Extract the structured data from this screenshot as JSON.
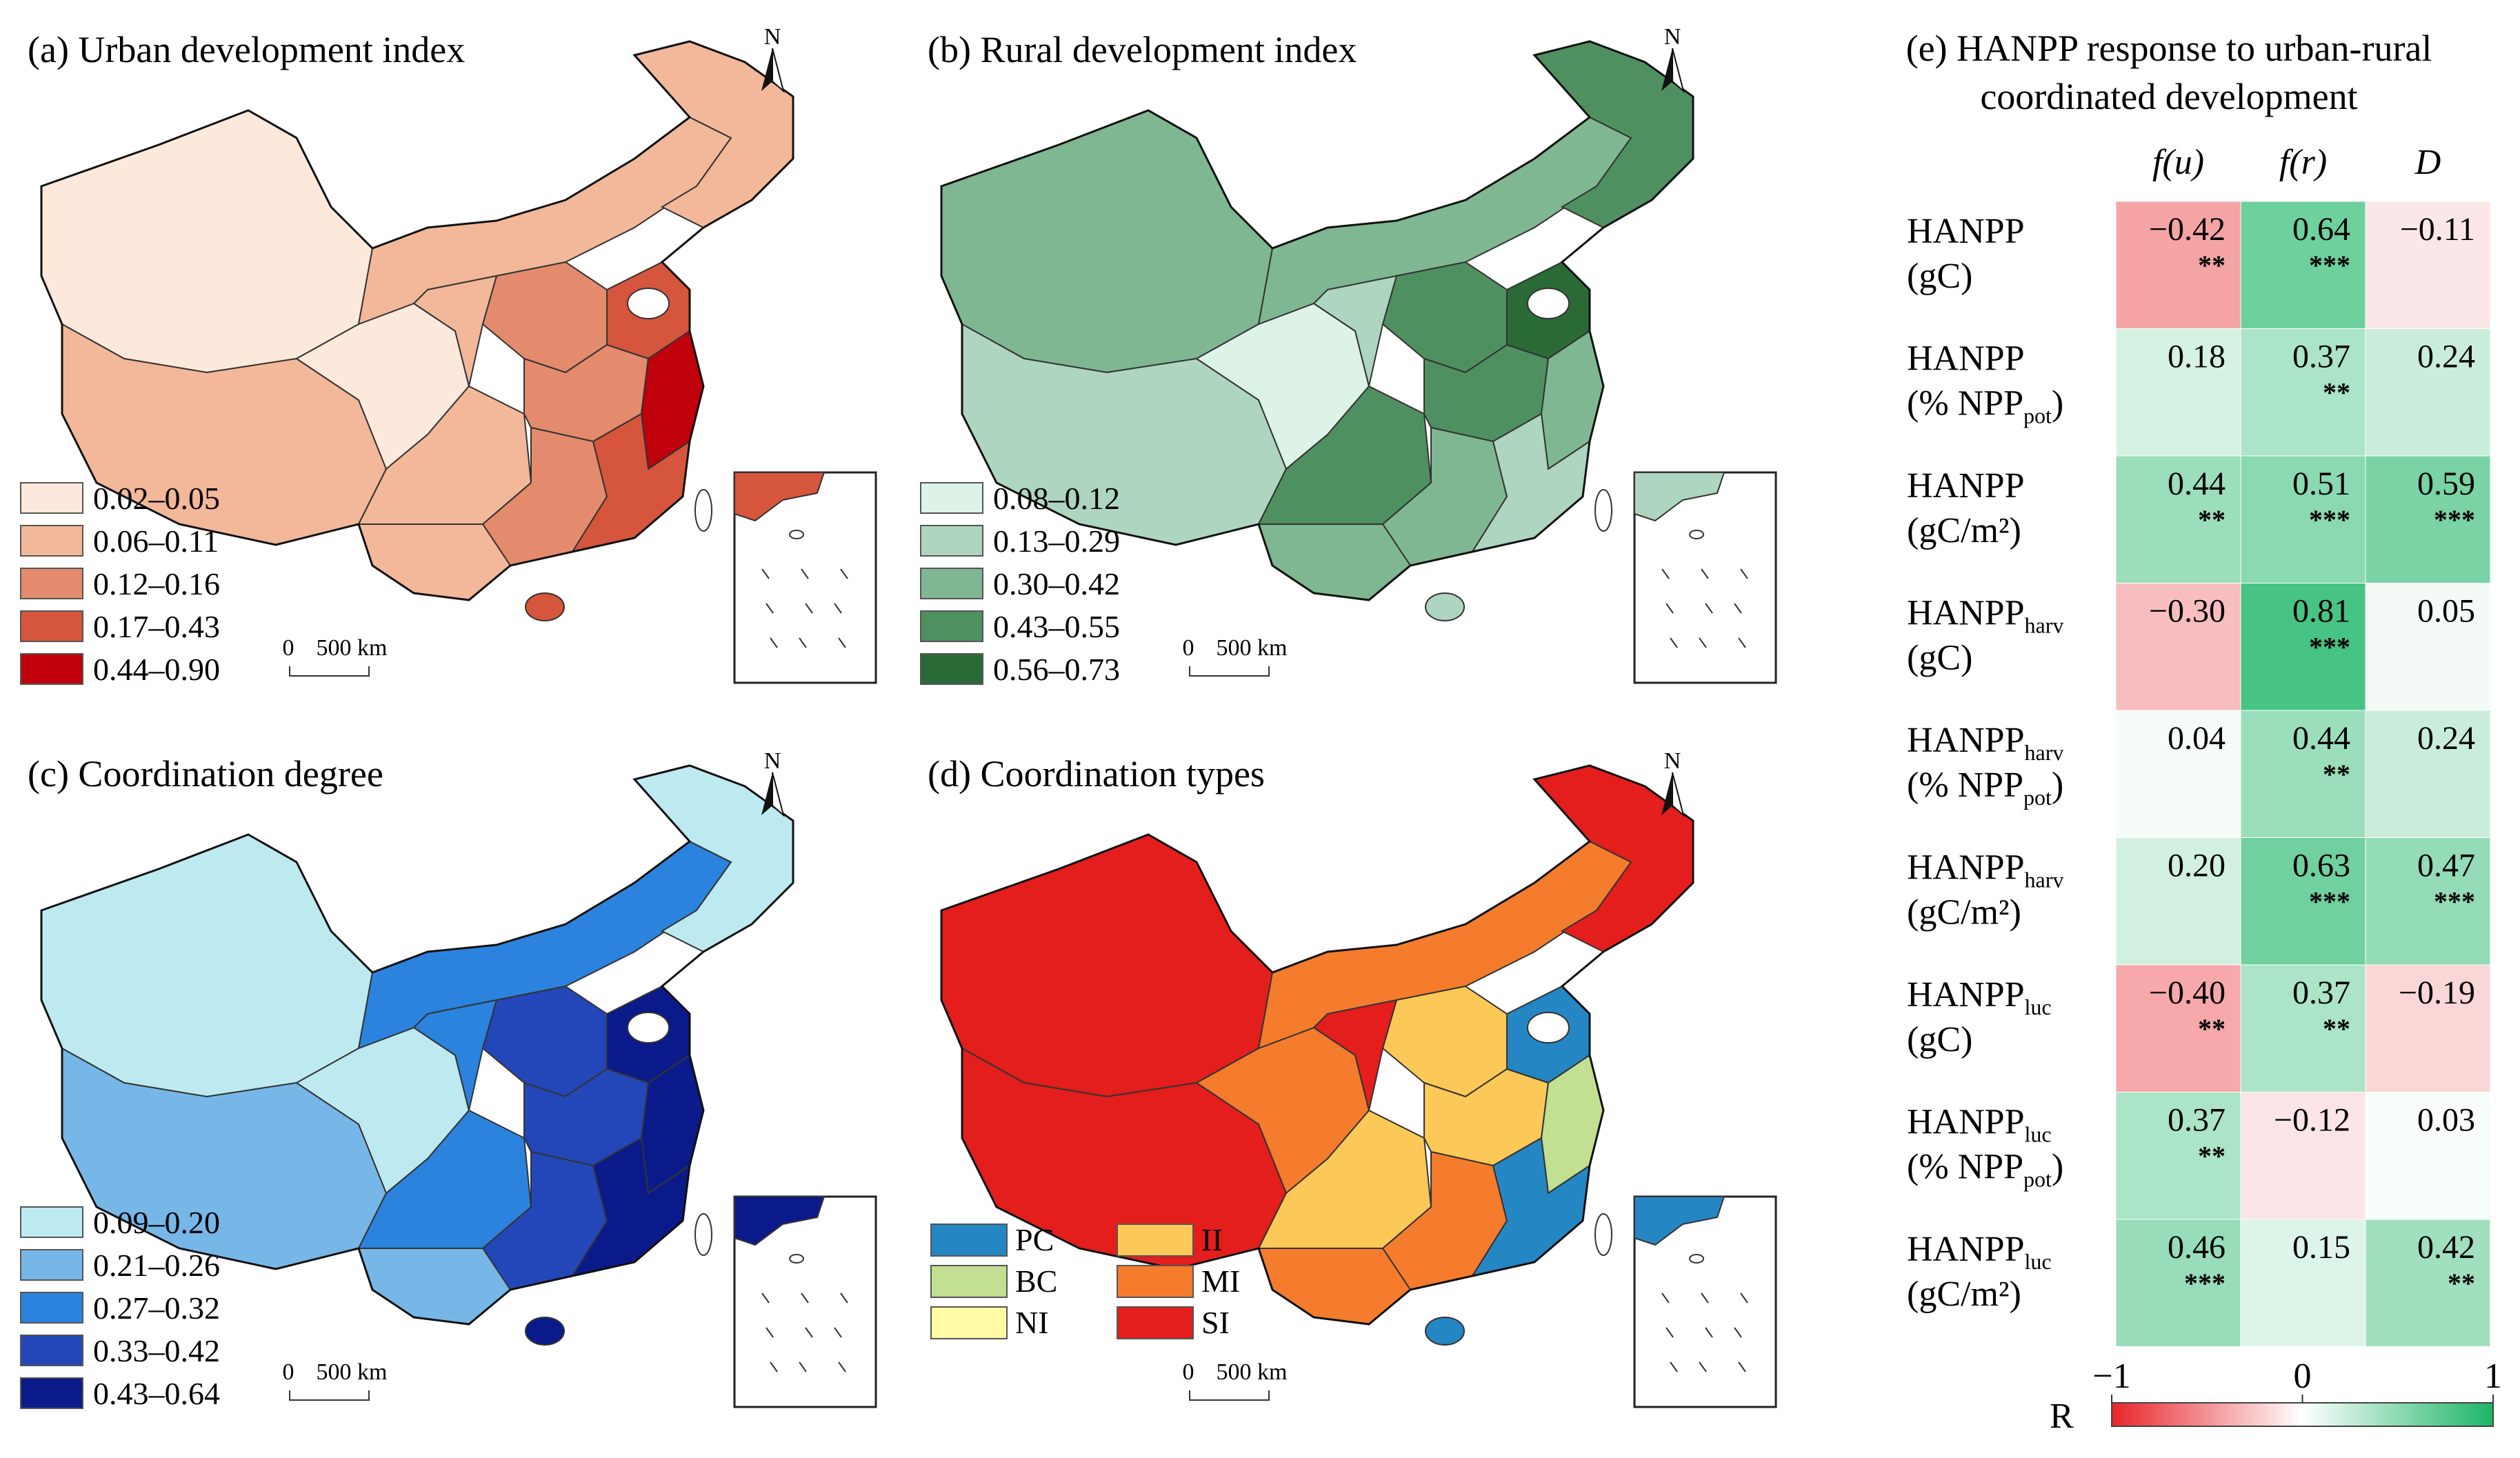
{
  "panels": {
    "a": {
      "title": "(a) Urban development index",
      "legend": [
        "0.02–0.05",
        "0.06–0.11",
        "0.12–0.16",
        "0.17–0.43",
        "0.44–0.90"
      ],
      "colors": [
        "#fde9dc",
        "#f2b899",
        "#e48b6e",
        "#d5553d",
        "#c0000a"
      ]
    },
    "b": {
      "title": "(b) Rural development index",
      "legend": [
        "0.08–0.12",
        "0.13–0.29",
        "0.30–0.42",
        "0.43–0.55",
        "0.56–0.73"
      ],
      "colors": [
        "#def3e8",
        "#aed5bf",
        "#7fb792",
        "#4f9060",
        "#2a6a36"
      ]
    },
    "c": {
      "title": "(c) Coordination degree",
      "legend": [
        "0.09–0.20",
        "0.21–0.26",
        "0.27–0.32",
        "0.33–0.42",
        "0.43–0.64"
      ],
      "colors": [
        "#bdeaf1",
        "#77b7e8",
        "#2b83de",
        "#2347b8",
        "#0b1a8a"
      ]
    },
    "d": {
      "title": "(d) Coordination types",
      "legend": [
        "PC",
        "BC",
        "NI",
        "II",
        "MI",
        "SI"
      ],
      "colors": [
        "#2586c4",
        "#c2df92",
        "#fffaa6",
        "#fcc857",
        "#f47c2c",
        "#e41d1d"
      ]
    }
  },
  "map_common": {
    "north": "N",
    "scale_zero": "0",
    "scale_label": "500 km"
  },
  "chart_data": {
    "type": "heatmap",
    "title_line1": "(e) HANPP response to urban-rural",
    "title_line2": "coordinated development",
    "columns": [
      "f(u)",
      "f(r)",
      "D"
    ],
    "rows": [
      {
        "main": "HANPP",
        "sub": "",
        "line2": "(gC)",
        "line2_sub": "",
        "line2_tail": ""
      },
      {
        "main": "HANPP",
        "sub": "",
        "line2": "(% NPP",
        "line2_sub": "pot",
        "line2_tail": ")"
      },
      {
        "main": "HANPP",
        "sub": "",
        "line2": "(gC/m²)",
        "line2_sub": "",
        "line2_tail": ""
      },
      {
        "main": "HANPP",
        "sub": "harv",
        "line2": "(gC)",
        "line2_sub": "",
        "line2_tail": ""
      },
      {
        "main": "HANPP",
        "sub": "harv",
        "line2": "(% NPP",
        "line2_sub": "pot",
        "line2_tail": ")"
      },
      {
        "main": "HANPP",
        "sub": "harv",
        "line2": "(gC/m²)",
        "line2_sub": "",
        "line2_tail": ""
      },
      {
        "main": "HANPP",
        "sub": "luc",
        "line2": "(gC)",
        "line2_sub": "",
        "line2_tail": ""
      },
      {
        "main": "HANPP",
        "sub": "luc",
        "line2": "(% NPP",
        "line2_sub": "pot",
        "line2_tail": ")"
      },
      {
        "main": "HANPP",
        "sub": "luc",
        "line2": "(gC/m²)",
        "line2_sub": "",
        "line2_tail": ""
      }
    ],
    "values": [
      [
        -0.42,
        0.64,
        -0.11
      ],
      [
        0.18,
        0.37,
        0.24
      ],
      [
        0.44,
        0.51,
        0.59
      ],
      [
        -0.3,
        0.81,
        0.05
      ],
      [
        0.04,
        0.44,
        0.24
      ],
      [
        0.2,
        0.63,
        0.47
      ],
      [
        -0.4,
        0.37,
        -0.19
      ],
      [
        0.37,
        -0.12,
        0.03
      ],
      [
        0.46,
        0.15,
        0.42
      ]
    ],
    "labels": [
      [
        "−0.42",
        "0.64",
        "−0.11"
      ],
      [
        "0.18",
        "0.37",
        "0.24"
      ],
      [
        "0.44",
        "0.51",
        "0.59"
      ],
      [
        "−0.30",
        "0.81",
        "0.05"
      ],
      [
        "0.04",
        "0.44",
        "0.24"
      ],
      [
        "0.20",
        "0.63",
        "0.47"
      ],
      [
        "−0.40",
        "0.37",
        "−0.19"
      ],
      [
        "0.37",
        "−0.12",
        "0.03"
      ],
      [
        "0.46",
        "0.15",
        "0.42"
      ]
    ],
    "significance": [
      [
        "**",
        "***",
        ""
      ],
      [
        "",
        "**",
        ""
      ],
      [
        "**",
        "***",
        "***"
      ],
      [
        "",
        "***",
        ""
      ],
      [
        "",
        "**",
        ""
      ],
      [
        "",
        "***",
        "***"
      ],
      [
        "**",
        "**",
        ""
      ],
      [
        "**",
        "",
        ""
      ],
      [
        "***",
        "",
        "**"
      ]
    ],
    "colorbar": {
      "label": "R",
      "min": -1,
      "max": 1,
      "ticks": [
        "−1",
        "0",
        "1"
      ]
    },
    "colors": {
      "negative": "#e8262b",
      "neutral": "#ffffff",
      "positive": "#1cb566"
    }
  }
}
